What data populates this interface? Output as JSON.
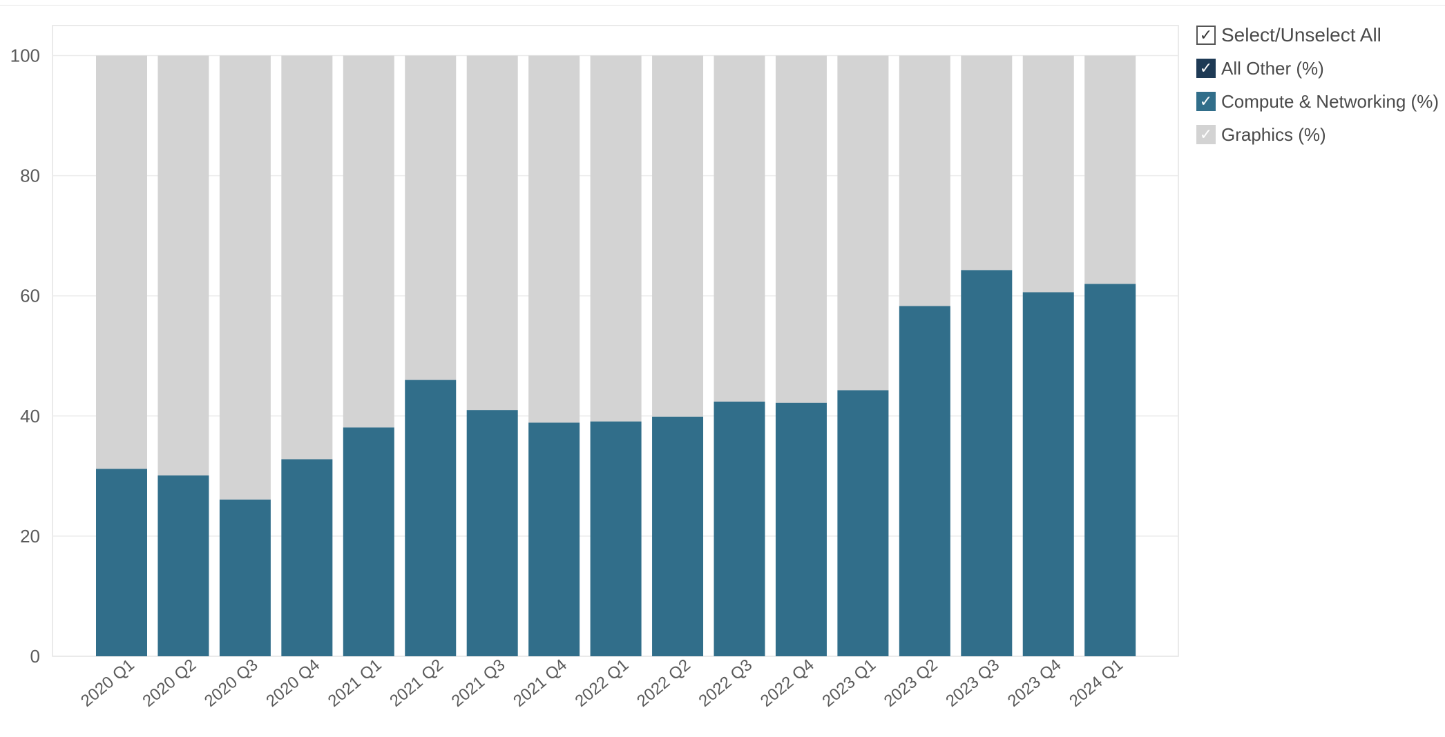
{
  "chart_data": {
    "type": "bar",
    "stacked": true,
    "categories": [
      "2020 Q1",
      "2020 Q2",
      "2020 Q3",
      "2020 Q4",
      "2021 Q1",
      "2021 Q2",
      "2021 Q3",
      "2021 Q4",
      "2022 Q1",
      "2022 Q2",
      "2022 Q3",
      "2022 Q4",
      "2023 Q1",
      "2023 Q2",
      "2023 Q3",
      "2023 Q4",
      "2024 Q1"
    ],
    "series": [
      {
        "name": "Compute & Networking (%)",
        "color": "#316e8a",
        "values": [
          31.2,
          30.1,
          26.1,
          32.8,
          38.1,
          46.0,
          41.0,
          38.9,
          39.1,
          39.9,
          42.4,
          42.2,
          44.3,
          58.3,
          64.3,
          60.6,
          62.0
        ]
      },
      {
        "name": "Graphics (%)",
        "color": "#d3d3d3",
        "values": [
          68.8,
          69.9,
          73.9,
          67.2,
          61.9,
          54.0,
          59.0,
          61.1,
          60.9,
          60.1,
          57.6,
          57.8,
          55.7,
          41.7,
          35.7,
          39.4,
          38.0
        ]
      }
    ],
    "yticks": [
      0,
      20,
      40,
      60,
      80,
      100
    ],
    "ylim": [
      0,
      105
    ],
    "grid": true,
    "legend_position": "right"
  },
  "legend": {
    "select_all_label": "Select/Unselect All",
    "items": [
      {
        "label": "All Other (%)",
        "color": "#1e3a55"
      },
      {
        "label": "Compute & Networking (%)",
        "color": "#316e8a"
      },
      {
        "label": "Graphics (%)",
        "color": "#d3d3d3"
      }
    ],
    "check_glyph": "✓"
  }
}
